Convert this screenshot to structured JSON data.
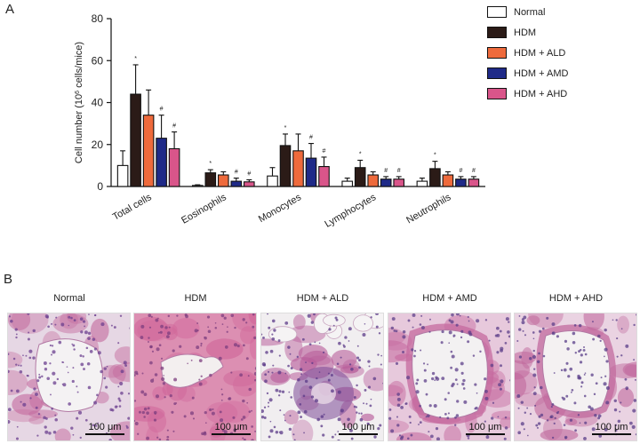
{
  "panel_a_label": "A",
  "panel_b_label": "B",
  "chart_data": {
    "type": "bar",
    "title": "",
    "xlabel": "",
    "ylabel_main": "Cell number (10",
    "ylabel_sup": "6",
    "ylabel_tail": " cells/mice)",
    "ylim": [
      0,
      80
    ],
    "yticks": [
      0,
      20,
      40,
      60,
      80
    ],
    "grid": false,
    "legend_position": "top-right",
    "categories": [
      "Total cells",
      "Eosinophils",
      "Monocytes",
      "Lymphocytes",
      "Neutrophils"
    ],
    "series": [
      {
        "name": "Normal",
        "color": "#ffffff",
        "values": [
          10,
          0.5,
          5,
          2.5,
          2.5
        ],
        "errors": [
          7,
          0.3,
          4,
          1.5,
          1.5
        ],
        "marks": [
          "",
          "",
          "",
          "",
          ""
        ]
      },
      {
        "name": "HDM",
        "color": "#2b1b17",
        "values": [
          44,
          6.5,
          19.5,
          9,
          8.5
        ],
        "errors": [
          14,
          1.5,
          5.5,
          3.5,
          3.5
        ],
        "marks": [
          "*",
          "*",
          "*",
          "*",
          "*"
        ]
      },
      {
        "name": "HDM + ALD",
        "color": "#ee6a3c",
        "values": [
          34,
          5.5,
          17,
          5.5,
          5.5
        ],
        "errors": [
          12,
          1.5,
          8,
          1.5,
          1.5
        ],
        "marks": [
          "",
          "",
          "",
          "",
          ""
        ]
      },
      {
        "name": "HDM + AMD",
        "color": "#1f2a88",
        "values": [
          23,
          2.5,
          13.5,
          3.5,
          3.5
        ],
        "errors": [
          11,
          1.5,
          7,
          1.2,
          1.2
        ],
        "marks": [
          "#",
          "#",
          "#",
          "#",
          "#"
        ]
      },
      {
        "name": "HDM + AHD",
        "color": "#d9558a",
        "values": [
          18,
          2.2,
          9.5,
          3.5,
          3.5
        ],
        "errors": [
          8,
          1.0,
          4.5,
          1.2,
          1.2
        ],
        "marks": [
          "#",
          "#",
          "#",
          "#",
          "#"
        ]
      }
    ]
  },
  "micrographs": [
    {
      "title": "Normal",
      "scale": "100 μm",
      "bg": "#e6d7e4",
      "cell": "#6b3f8f",
      "tissue": "#c46b9e",
      "lumen": "#f4f2f3"
    },
    {
      "title": "HDM",
      "scale": "100 μm",
      "bg": "#dc8fb2",
      "cell": "#7c3d7f",
      "tissue": "#d0679a",
      "lumen": "#f3efef"
    },
    {
      "title": "HDM + ALD",
      "scale": "100 μm",
      "bg": "#f1eef0",
      "cell": "#5b3a88",
      "tissue": "#b85d9a",
      "lumen": "#f5f3f4"
    },
    {
      "title": "HDM + AMD",
      "scale": "100 μm",
      "bg": "#e7c9dc",
      "cell": "#5d3f8a",
      "tissue": "#c66a9f",
      "lumen": "#f3f1f2"
    },
    {
      "title": "HDM + AHD",
      "scale": "100 μm",
      "bg": "#ead3e2",
      "cell": "#5a3d88",
      "tissue": "#c1699d",
      "lumen": "#f4f1f2"
    }
  ]
}
